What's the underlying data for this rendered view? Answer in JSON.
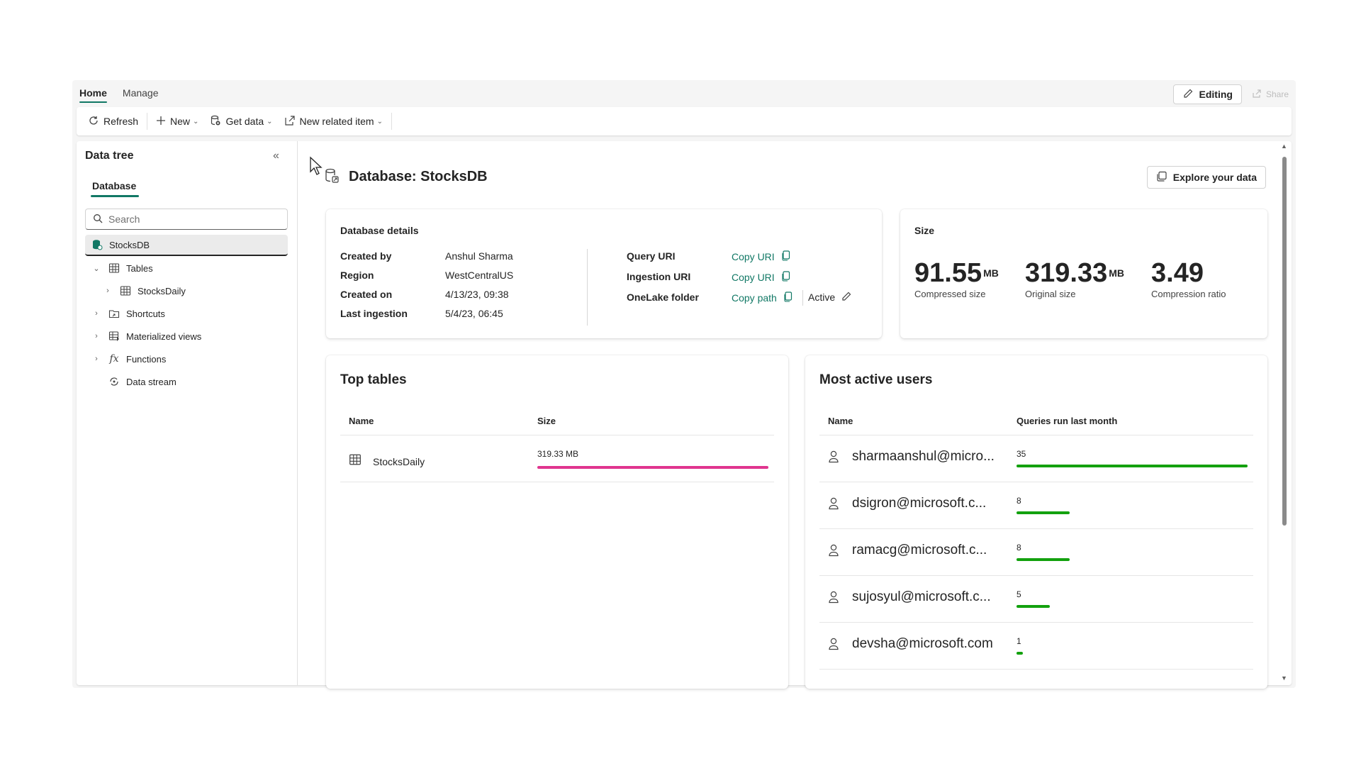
{
  "tabs": [
    {
      "label": "Home"
    },
    {
      "label": "Manage"
    }
  ],
  "top_right": {
    "editing_label": "Editing",
    "share_label": "Share"
  },
  "toolbar": {
    "refresh": "Refresh",
    "new": "New",
    "get_data": "Get data",
    "new_related": "New related item"
  },
  "tree": {
    "title": "Data tree",
    "tab": "Database",
    "search_placeholder": "Search",
    "nodes": [
      {
        "label": "StocksDB"
      },
      {
        "label": "Tables"
      },
      {
        "label": "StocksDaily"
      },
      {
        "label": "Shortcuts"
      },
      {
        "label": "Materialized views"
      },
      {
        "label": "Functions"
      },
      {
        "label": "Data stream"
      }
    ]
  },
  "main": {
    "title": "Database: StocksDB",
    "explore_label": "Explore your data"
  },
  "details": {
    "title": "Database details",
    "rows": [
      {
        "label": "Created by",
        "value": "Anshul Sharma"
      },
      {
        "label": "Region",
        "value": "WestCentralUS"
      },
      {
        "label": "Created on",
        "value": "4/13/23, 09:38"
      },
      {
        "label": "Last ingestion",
        "value": "5/4/23, 06:45"
      }
    ],
    "uris": [
      {
        "label": "Query URI",
        "link": "Copy URI"
      },
      {
        "label": "Ingestion URI",
        "link": "Copy URI"
      },
      {
        "label": "OneLake folder",
        "link": "Copy path",
        "status": "Active"
      }
    ]
  },
  "size": {
    "title": "Size",
    "items": [
      {
        "value": "91.55",
        "unit": "MB",
        "label": "Compressed size"
      },
      {
        "value": "319.33",
        "unit": "MB",
        "label": "Original size"
      },
      {
        "value": "3.49",
        "unit": "",
        "label": "Compression ratio"
      }
    ]
  },
  "top_tables": {
    "title": "Top tables",
    "col_name": "Name",
    "col_size": "Size",
    "rows": [
      {
        "name": "StocksDaily",
        "size_label": "319.33 MB",
        "fraction": 1.0
      }
    ]
  },
  "active_users": {
    "title": "Most active users",
    "col_name": "Name",
    "col_queries": "Queries run last month",
    "max": 35,
    "rows": [
      {
        "name": "sharmaanshul@micro...",
        "queries": 35
      },
      {
        "name": "dsigron@microsoft.c...",
        "queries": 8
      },
      {
        "name": "ramacg@microsoft.c...",
        "queries": 8
      },
      {
        "name": "sujosyul@microsoft.c...",
        "queries": 5
      },
      {
        "name": "devsha@microsoft.com",
        "queries": 1
      }
    ]
  },
  "colors": {
    "accent": "#117865",
    "table_bar": "#e0358f",
    "user_bar": "#13a10e"
  }
}
